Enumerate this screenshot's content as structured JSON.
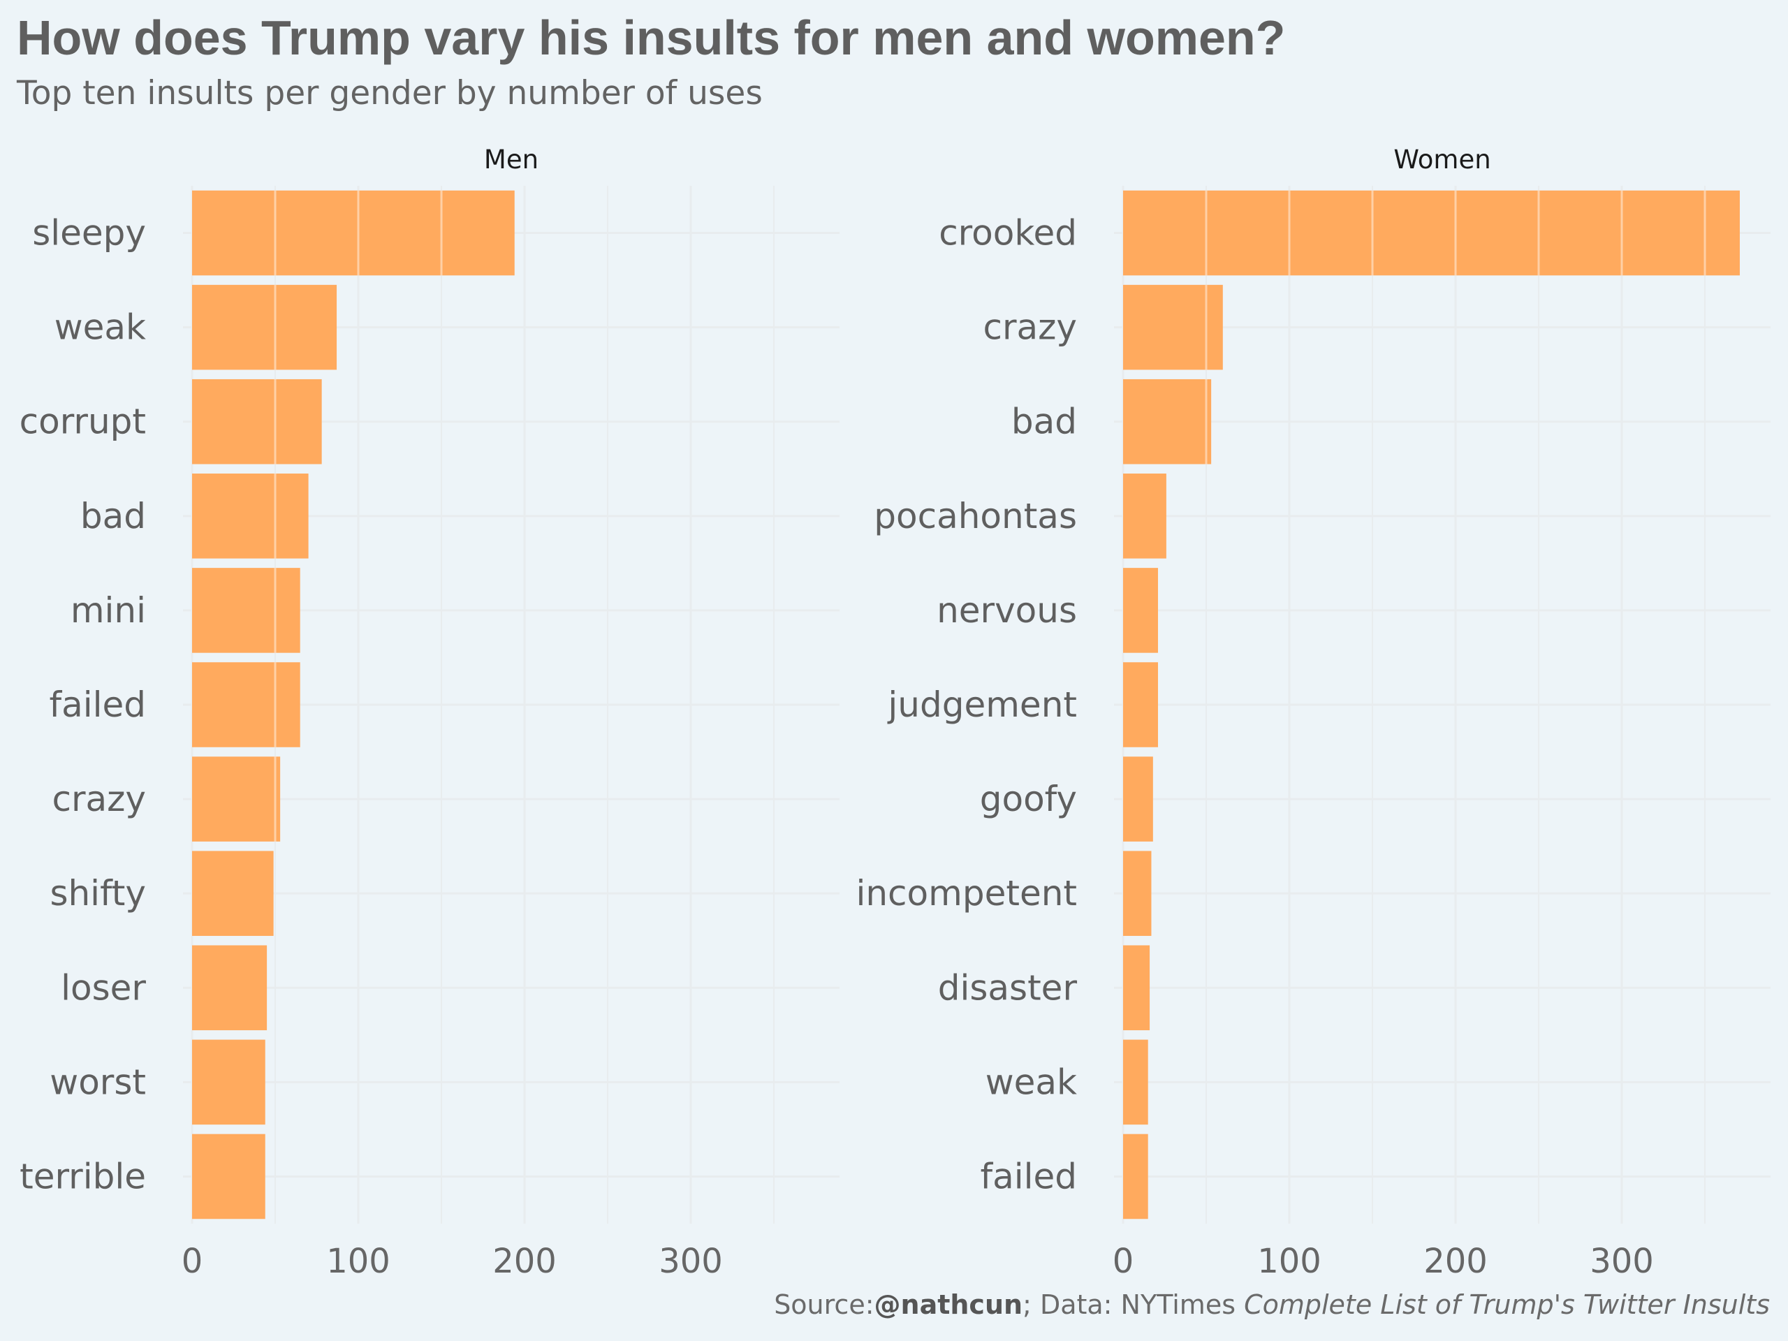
{
  "title": "How does Trump vary his insults for men and women?",
  "subtitle": "Top ten insults per gender by number of uses",
  "caption": {
    "source_prefix": "Source:",
    "source_handle": "@nathcun",
    "data_prefix": "; Data: NYTimes ",
    "data_title": "Complete List of Trump's Twitter Insults"
  },
  "colors": {
    "bar": "#ffaa5e",
    "background": "#edf4f8",
    "grid": "#e8ecee"
  },
  "chart_data": [
    {
      "type": "bar",
      "orientation": "horizontal",
      "facet": "Men",
      "categories": [
        "sleepy",
        "weak",
        "corrupt",
        "bad",
        "mini",
        "failed",
        "crazy",
        "shifty",
        "loser",
        "worst",
        "terrible"
      ],
      "values": [
        194,
        87,
        78,
        70,
        65,
        65,
        53,
        49,
        45,
        44,
        44
      ],
      "xlim": [
        0,
        390
      ],
      "xticks": [
        0,
        100,
        200,
        300
      ]
    },
    {
      "type": "bar",
      "orientation": "horizontal",
      "facet": "Women",
      "categories": [
        "crooked",
        "crazy",
        "bad",
        "pocahontas",
        "nervous",
        "judgement",
        "goofy",
        "incompetent",
        "disaster",
        "weak",
        "failed"
      ],
      "values": [
        371,
        60,
        53,
        26,
        21,
        21,
        18,
        17,
        16,
        15,
        15
      ],
      "xlim": [
        0,
        390
      ],
      "xticks": [
        0,
        100,
        200,
        300
      ]
    }
  ]
}
